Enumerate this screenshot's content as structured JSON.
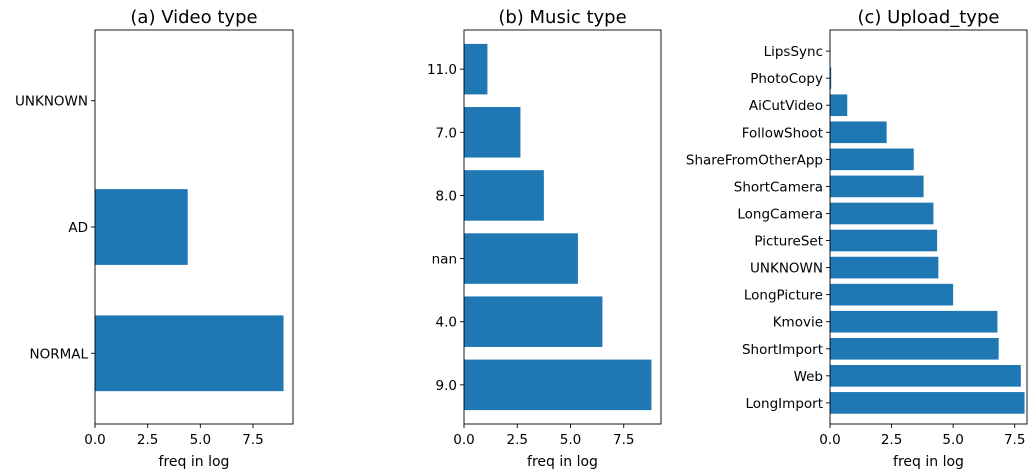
{
  "bar_color": "#1f77b4",
  "chart_data": [
    {
      "type": "bar",
      "orientation": "horizontal",
      "title": "(a) Video type",
      "xlabel": "freq in log",
      "ylabel": "",
      "categories": [
        "NORMAL",
        "AD",
        "UNKNOWN"
      ],
      "values": [
        8.95,
        4.4,
        0
      ],
      "xlim": [
        0,
        9.4
      ],
      "xticks": [
        "0.0",
        "2.5",
        "5.0",
        "7.5"
      ]
    },
    {
      "type": "bar",
      "orientation": "horizontal",
      "title": "(b) Music type",
      "xlabel": "freq in log",
      "ylabel": "",
      "categories": [
        "9.0",
        "4.0",
        "nan",
        "8.0",
        "7.0",
        "11.0"
      ],
      "values": [
        8.8,
        6.5,
        5.35,
        3.75,
        2.65,
        1.1
      ],
      "xlim": [
        0,
        9.25
      ],
      "xticks": [
        "0.0",
        "2.5",
        "5.0",
        "7.5"
      ]
    },
    {
      "type": "bar",
      "orientation": "horizontal",
      "title": "(c) Upload_type",
      "xlabel": "freq in log",
      "ylabel": "",
      "categories": [
        "LongImport",
        "Web",
        "ShortImport",
        "Kmovie",
        "LongPicture",
        "UNKNOWN",
        "PictureSet",
        "LongCamera",
        "ShortCamera",
        "ShareFromOtherApp",
        "FollowShoot",
        "AiCutVideo",
        "PhotoCopy",
        "LipsSync"
      ],
      "values": [
        7.9,
        7.75,
        6.85,
        6.8,
        5.0,
        4.4,
        4.35,
        4.2,
        3.8,
        3.4,
        2.3,
        0.7,
        0.05,
        0.02
      ],
      "xlim": [
        0,
        8.0
      ],
      "xticks": [
        "0.0",
        "2.5",
        "5.0",
        "7.5"
      ]
    }
  ]
}
